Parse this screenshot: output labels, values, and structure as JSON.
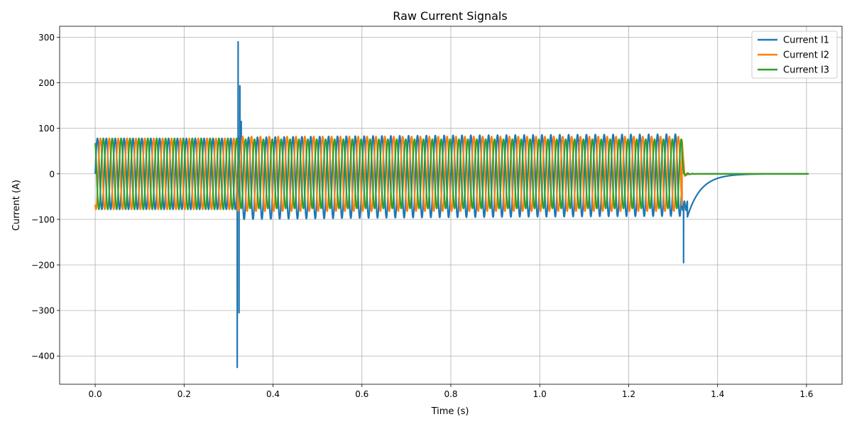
{
  "chart_data": {
    "type": "line",
    "title": "Raw Current Signals",
    "xlabel": "Time (s)",
    "ylabel": "Current (A)",
    "xlim": [
      -0.08,
      1.68
    ],
    "ylim": [
      -462,
      324
    ],
    "grid": true,
    "legend_position": "top-right",
    "x_ticks": [
      0.0,
      0.2,
      0.4,
      0.6,
      0.8,
      1.0,
      1.2,
      1.4,
      1.6
    ],
    "x_tick_labels": [
      "0.0",
      "0.2",
      "0.4",
      "0.6",
      "0.8",
      "1.0",
      "1.2",
      "1.4",
      "1.6"
    ],
    "y_ticks": [
      300,
      200,
      100,
      0,
      -100,
      -200,
      -300,
      -400
    ],
    "y_tick_labels": [
      "300",
      "200",
      "100",
      "0",
      "−100",
      "−200",
      "−300",
      "−400"
    ],
    "signal": {
      "frequency_hz": 50,
      "t_start": 0.0,
      "t_end": 1.605,
      "prefault_amplitude": 78,
      "fault_inception": 0.32,
      "fault_clearing": 1.32,
      "fault_amplitudes": {
        "I1": 90,
        "I2": 82,
        "I3": 76
      },
      "phase_offsets_deg": {
        "I1": 0,
        "I2": -120,
        "I3": 120
      },
      "decay_tail": {
        "I1_start": -95,
        "I1_time_constant": 0.03
      },
      "transient_peaks": {
        "I1": [
          {
            "t": 0.3195,
            "value": -425
          },
          {
            "t": 0.3215,
            "value": 290
          },
          {
            "t": 0.3235,
            "value": -305
          },
          {
            "t": 0.3255,
            "value": 193
          },
          {
            "t": 0.3285,
            "value": 115
          },
          {
            "t": 1.3235,
            "value": -195
          }
        ]
      }
    },
    "series": [
      {
        "name": "Current I1",
        "color": "#1f77b4"
      },
      {
        "name": "Current I2",
        "color": "#ff7f0e"
      },
      {
        "name": "Current I3",
        "color": "#2ca02c"
      }
    ]
  }
}
